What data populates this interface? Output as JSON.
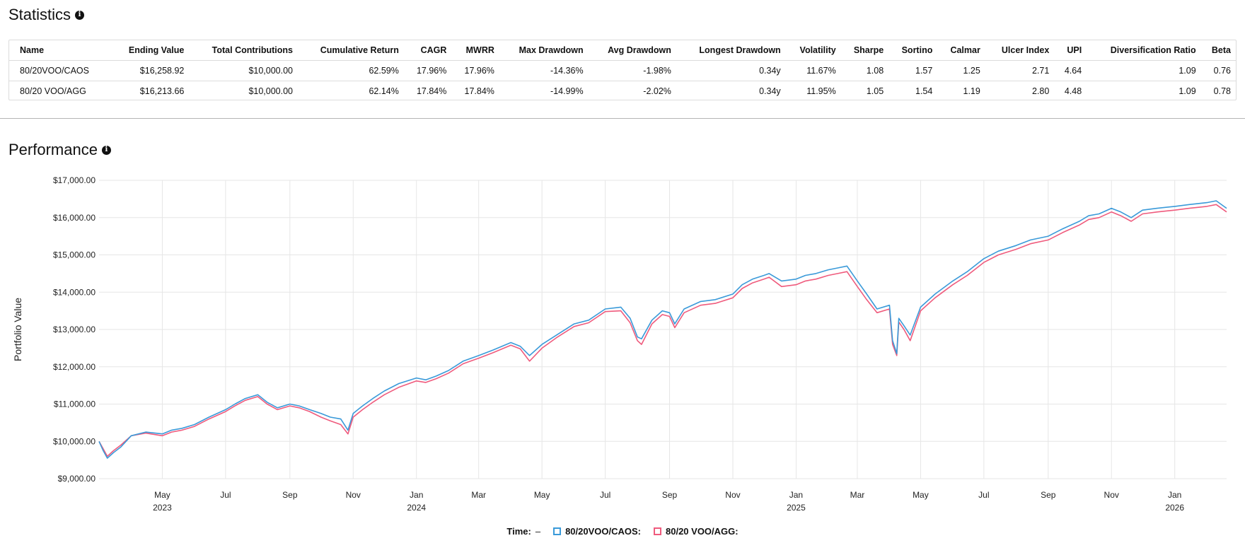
{
  "statistics": {
    "title": "Statistics",
    "columns": [
      "Name",
      "Ending Value",
      "Total Contributions",
      "Cumulative Return",
      "CAGR",
      "MWRR",
      "Max Drawdown",
      "Avg Drawdown",
      "Longest Drawdown",
      "Volatility",
      "Sharpe",
      "Sortino",
      "Calmar",
      "Ulcer Index",
      "UPI",
      "Diversification Ratio",
      "Beta"
    ],
    "rows": [
      [
        "80/20VOO/CAOS",
        "$16,258.92",
        "$10,000.00",
        "62.59%",
        "17.96%",
        "17.96%",
        "-14.36%",
        "-1.98%",
        "0.34y",
        "11.67%",
        "1.08",
        "1.57",
        "1.25",
        "2.71",
        "4.64",
        "1.09",
        "0.76"
      ],
      [
        "80/20 VOO/AGG",
        "$16,213.66",
        "$10,000.00",
        "62.14%",
        "17.84%",
        "17.84%",
        "-14.99%",
        "-2.02%",
        "0.34y",
        "11.95%",
        "1.05",
        "1.54",
        "1.19",
        "2.80",
        "4.48",
        "1.09",
        "0.78"
      ]
    ]
  },
  "performance": {
    "title": "Performance",
    "legend": {
      "time_label": "Time:",
      "time_value": "–"
    }
  },
  "chart_data": {
    "type": "line",
    "ylabel": "Portfolio Value",
    "yticks": [
      "$9,000.00",
      "$10,000.00",
      "$11,000.00",
      "$12,000.00",
      "$13,000.00",
      "$14,000.00",
      "$15,000.00",
      "$16,000.00",
      "$17,000.00"
    ],
    "ylim": [
      9000,
      17000
    ],
    "xlim": [
      "2023-03-01",
      "2026-02-20"
    ],
    "xticks": [
      {
        "date": "2023-05-01",
        "label": "May",
        "year": "2023"
      },
      {
        "date": "2023-07-01",
        "label": "Jul",
        "year": ""
      },
      {
        "date": "2023-09-01",
        "label": "Sep",
        "year": ""
      },
      {
        "date": "2023-11-01",
        "label": "Nov",
        "year": ""
      },
      {
        "date": "2024-01-01",
        "label": "Jan",
        "year": "2024"
      },
      {
        "date": "2024-03-01",
        "label": "Mar",
        "year": ""
      },
      {
        "date": "2024-05-01",
        "label": "May",
        "year": ""
      },
      {
        "date": "2024-07-01",
        "label": "Jul",
        "year": ""
      },
      {
        "date": "2024-09-01",
        "label": "Sep",
        "year": ""
      },
      {
        "date": "2024-11-01",
        "label": "Nov",
        "year": ""
      },
      {
        "date": "2025-01-01",
        "label": "Jan",
        "year": "2025"
      },
      {
        "date": "2025-03-01",
        "label": "Mar",
        "year": ""
      },
      {
        "date": "2025-05-01",
        "label": "May",
        "year": ""
      },
      {
        "date": "2025-07-01",
        "label": "Jul",
        "year": ""
      },
      {
        "date": "2025-09-01",
        "label": "Sep",
        "year": ""
      },
      {
        "date": "2025-11-01",
        "label": "Nov",
        "year": ""
      },
      {
        "date": "2026-01-01",
        "label": "Jan",
        "year": "2026"
      }
    ],
    "x": [
      "2023-03-01",
      "2023-03-05",
      "2023-03-09",
      "2023-03-15",
      "2023-03-22",
      "2023-04-01",
      "2023-04-15",
      "2023-05-01",
      "2023-05-10",
      "2023-05-20",
      "2023-06-01",
      "2023-06-15",
      "2023-07-01",
      "2023-07-10",
      "2023-07-20",
      "2023-08-01",
      "2023-08-10",
      "2023-08-20",
      "2023-09-01",
      "2023-09-10",
      "2023-09-20",
      "2023-10-01",
      "2023-10-10",
      "2023-10-20",
      "2023-10-27",
      "2023-11-01",
      "2023-11-10",
      "2023-11-20",
      "2023-12-01",
      "2023-12-15",
      "2024-01-01",
      "2024-01-10",
      "2024-01-20",
      "2024-02-01",
      "2024-02-15",
      "2024-03-01",
      "2024-03-15",
      "2024-04-01",
      "2024-04-10",
      "2024-04-19",
      "2024-05-01",
      "2024-05-15",
      "2024-06-01",
      "2024-06-15",
      "2024-07-01",
      "2024-07-16",
      "2024-07-25",
      "2024-08-01",
      "2024-08-05",
      "2024-08-15",
      "2024-08-25",
      "2024-09-01",
      "2024-09-06",
      "2024-09-15",
      "2024-10-01",
      "2024-10-15",
      "2024-11-01",
      "2024-11-10",
      "2024-11-20",
      "2024-12-01",
      "2024-12-06",
      "2024-12-18",
      "2025-01-01",
      "2025-01-10",
      "2025-01-20",
      "2025-02-01",
      "2025-02-10",
      "2025-02-19",
      "2025-03-01",
      "2025-03-10",
      "2025-03-20",
      "2025-04-01",
      "2025-04-04",
      "2025-04-08",
      "2025-04-10",
      "2025-04-15",
      "2025-04-21",
      "2025-05-01",
      "2025-05-15",
      "2025-06-01",
      "2025-06-15",
      "2025-07-01",
      "2025-07-15",
      "2025-08-01",
      "2025-08-15",
      "2025-09-01",
      "2025-09-15",
      "2025-10-01",
      "2025-10-10",
      "2025-10-20",
      "2025-11-01",
      "2025-11-10",
      "2025-11-20",
      "2025-12-01",
      "2025-12-15",
      "2026-01-01",
      "2026-01-15",
      "2026-02-01",
      "2026-02-10",
      "2026-02-20"
    ],
    "series": [
      {
        "name": "80/20VOO/CAOS",
        "color": "#3a9ad9",
        "values": [
          10000,
          9750,
          9550,
          9700,
          9850,
          10150,
          10250,
          10200,
          10300,
          10350,
          10450,
          10650,
          10850,
          11000,
          11150,
          11250,
          11050,
          10900,
          11000,
          10950,
          10850,
          10750,
          10650,
          10600,
          10300,
          10750,
          10950,
          11150,
          11350,
          11550,
          11700,
          11650,
          11750,
          11900,
          12150,
          12300,
          12450,
          12650,
          12550,
          12300,
          12600,
          12850,
          13150,
          13250,
          13550,
          13600,
          13300,
          12800,
          12750,
          13250,
          13500,
          13450,
          13150,
          13550,
          13750,
          13800,
          13950,
          14200,
          14350,
          14450,
          14500,
          14300,
          14350,
          14450,
          14500,
          14600,
          14650,
          14700,
          14300,
          13950,
          13550,
          13650,
          12700,
          12350,
          13300,
          13100,
          12850,
          13600,
          13950,
          14300,
          14550,
          14900,
          15100,
          15250,
          15400,
          15500,
          15700,
          15900,
          16050,
          16100,
          16250,
          16150,
          16000,
          16200,
          16250,
          16300,
          16350,
          16400,
          16450,
          16250
        ]
      },
      {
        "name": "80/20 VOO/AGG",
        "color": "#ef5b7d",
        "values": [
          10000,
          9800,
          9600,
          9750,
          9900,
          10150,
          10220,
          10150,
          10250,
          10300,
          10400,
          10600,
          10800,
          10950,
          11100,
          11200,
          11000,
          10850,
          10950,
          10900,
          10800,
          10650,
          10550,
          10450,
          10200,
          10650,
          10850,
          11050,
          11250,
          11450,
          11620,
          11580,
          11680,
          11830,
          12080,
          12230,
          12380,
          12580,
          12480,
          12150,
          12500,
          12780,
          13080,
          13180,
          13480,
          13500,
          13180,
          12700,
          12600,
          13150,
          13400,
          13350,
          13050,
          13450,
          13650,
          13700,
          13850,
          14100,
          14250,
          14350,
          14400,
          14150,
          14200,
          14300,
          14350,
          14450,
          14500,
          14550,
          14150,
          13800,
          13450,
          13550,
          12600,
          12300,
          13200,
          13000,
          12700,
          13500,
          13850,
          14200,
          14450,
          14800,
          15000,
          15150,
          15300,
          15400,
          15600,
          15800,
          15950,
          16000,
          16150,
          16050,
          15900,
          16100,
          16150,
          16200,
          16250,
          16300,
          16350,
          16150
        ]
      }
    ],
    "grid": true,
    "legend_position": "bottom"
  }
}
